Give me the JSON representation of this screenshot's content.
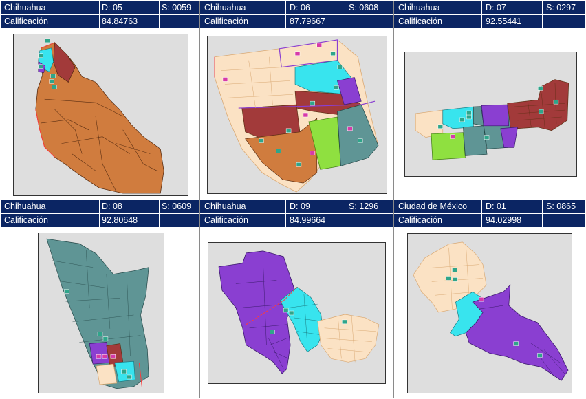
{
  "cards": [
    {
      "city": "Chihuahua",
      "district": "D: 05",
      "section": "S: 0059",
      "score_label": "Calificación",
      "score": "84.84763",
      "map_icon": "district-map-05"
    },
    {
      "city": "Chihuahua",
      "district": "D: 06",
      "section": "S: 0608",
      "score_label": "Calificación",
      "score": "87.79667",
      "map_icon": "district-map-06"
    },
    {
      "city": "Chihuahua",
      "district": "D: 07",
      "section": "S: 0297",
      "score_label": "Calificación",
      "score": "92.55441",
      "map_icon": "district-map-07"
    },
    {
      "city": "Chihuahua",
      "district": "D: 08",
      "section": "S: 0609",
      "score_label": "Calificación",
      "score": "92.80648",
      "map_icon": "district-map-08"
    },
    {
      "city": "Chihuahua",
      "district": "D: 09",
      "section": "S: 1296",
      "score_label": "Calificación",
      "score": "84.99664",
      "map_icon": "district-map-09"
    },
    {
      "city": "Ciudad de México",
      "district": "D: 01",
      "section": "S: 0865",
      "score_label": "Calificación",
      "score": "94.02998",
      "map_icon": "district-map-01"
    }
  ],
  "colors": {
    "header_bg": "#0b2563",
    "orange": "#d07c3e",
    "maroon": "#a23a3a",
    "purple": "#8a3fd1",
    "cyan": "#38e4ee",
    "slate": "#5f9595",
    "lime": "#8fe040",
    "peach": "#fbe2c4",
    "map_bg": "#dedede"
  }
}
